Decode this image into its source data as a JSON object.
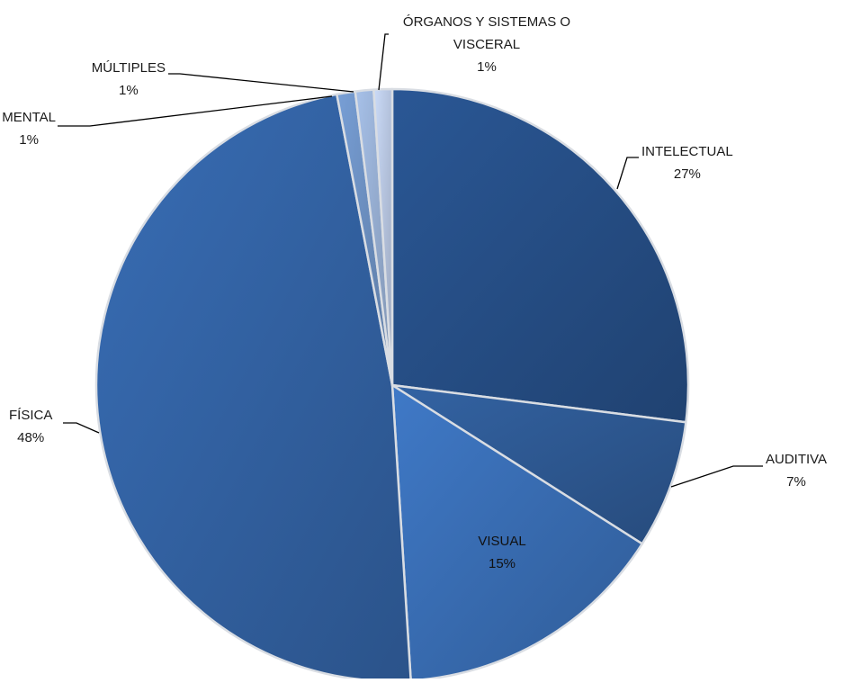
{
  "chart_data": {
    "type": "pie",
    "title": "",
    "slices": [
      {
        "label": "INTELECTUAL",
        "value": 27,
        "value_label": "27%",
        "color": "#27518a"
      },
      {
        "label": "AUDITIVA",
        "value": 7,
        "value_label": "7%",
        "color": "#2f5c97"
      },
      {
        "label": "VISUAL",
        "value": 15,
        "value_label": "15%",
        "color": "#3a70b8"
      },
      {
        "label": "FÍSICA",
        "value": 48,
        "value_label": "48%",
        "color": "#3465a8"
      },
      {
        "label": "MENTAL",
        "value": 1,
        "value_label": "1%",
        "color": "#6f93c6"
      },
      {
        "label": "MÚLTIPLES",
        "value": 1,
        "value_label": "1%",
        "color": "#9bb3d8"
      },
      {
        "label": "ÓRGANOS Y SISTEMAS O VISCERAL",
        "value": 1,
        "value_label": "1%",
        "color": "#bccbe6"
      }
    ],
    "start_angle": "12 o'clock",
    "direction": "clockwise",
    "legend": "none",
    "label_style": "category name and percentage next to each slice"
  }
}
